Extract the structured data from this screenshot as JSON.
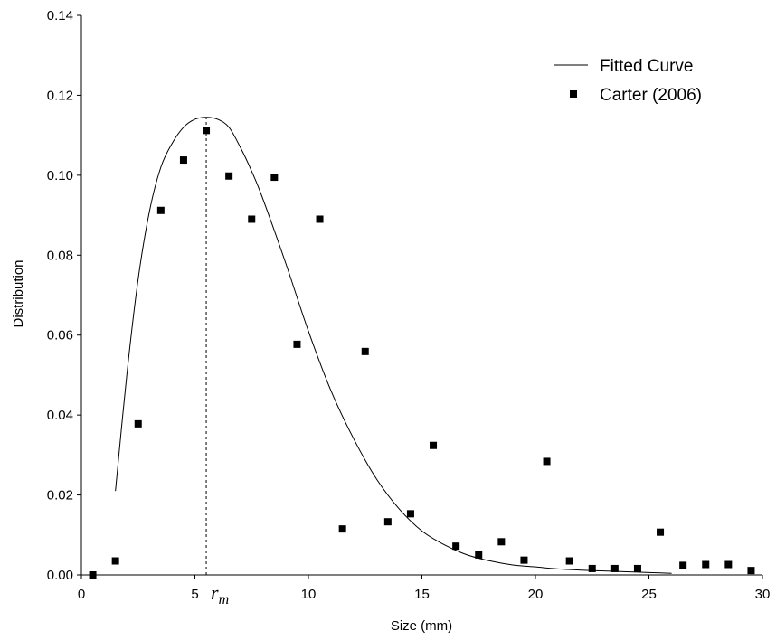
{
  "chart_data": {
    "type": "scatter",
    "xlabel": "Size (mm)",
    "ylabel": "Distribution",
    "xlim": [
      0,
      30
    ],
    "ylim": [
      0,
      0.14
    ],
    "x_ticks": [
      "0",
      "5",
      "10",
      "15",
      "20",
      "25",
      "30"
    ],
    "y_ticks": [
      "0.00",
      "0.02",
      "0.04",
      "0.06",
      "0.08",
      "0.10",
      "0.12",
      "0.14"
    ],
    "grid": false,
    "legend_position": "top-right",
    "colors": {
      "line": "#000000",
      "markers": "#000000"
    },
    "annotation": {
      "x": 5.5,
      "label_main": "r",
      "label_sub": "m"
    },
    "series": [
      {
        "name": "Fitted Curve",
        "type": "line",
        "x": [
          1.5,
          2.0,
          2.5,
          3.0,
          3.5,
          4.0,
          4.5,
          5.0,
          5.5,
          6.0,
          6.5,
          7.0,
          7.5,
          8.0,
          9.0,
          10.0,
          11.0,
          12.0,
          13.0,
          14.0,
          15.0,
          16.0,
          17.0,
          18.0,
          19.0,
          20.0,
          21.0,
          22.0,
          23.0,
          24.0,
          25.0,
          26.0
        ],
        "y": [
          0.021,
          0.05,
          0.074,
          0.091,
          0.102,
          0.108,
          0.112,
          0.114,
          0.1145,
          0.114,
          0.112,
          0.107,
          0.101,
          0.094,
          0.078,
          0.061,
          0.046,
          0.034,
          0.024,
          0.0165,
          0.011,
          0.0075,
          0.005,
          0.0035,
          0.0025,
          0.002,
          0.0015,
          0.0012,
          0.001,
          0.0008,
          0.0006,
          0.0004
        ]
      },
      {
        "name": "Carter (2006)",
        "type": "scatter",
        "x": [
          0.5,
          1.5,
          2.5,
          3.5,
          4.5,
          5.5,
          6.5,
          7.5,
          8.5,
          9.5,
          10.5,
          11.5,
          12.5,
          13.5,
          14.5,
          15.5,
          16.5,
          17.5,
          18.5,
          19.5,
          20.5,
          21.5,
          22.5,
          23.5,
          24.5,
          25.5,
          26.5,
          27.5,
          28.5,
          29.5
        ],
        "y": [
          0.0,
          0.0035,
          0.0378,
          0.0912,
          0.1038,
          0.1112,
          0.0998,
          0.089,
          0.0995,
          0.0577,
          0.089,
          0.0115,
          0.0559,
          0.0133,
          0.0153,
          0.0324,
          0.0072,
          0.005,
          0.0083,
          0.0037,
          0.0284,
          0.0035,
          0.0016,
          0.0016,
          0.0016,
          0.0107,
          0.0024,
          0.0026,
          0.0026,
          0.0011
        ]
      }
    ]
  }
}
